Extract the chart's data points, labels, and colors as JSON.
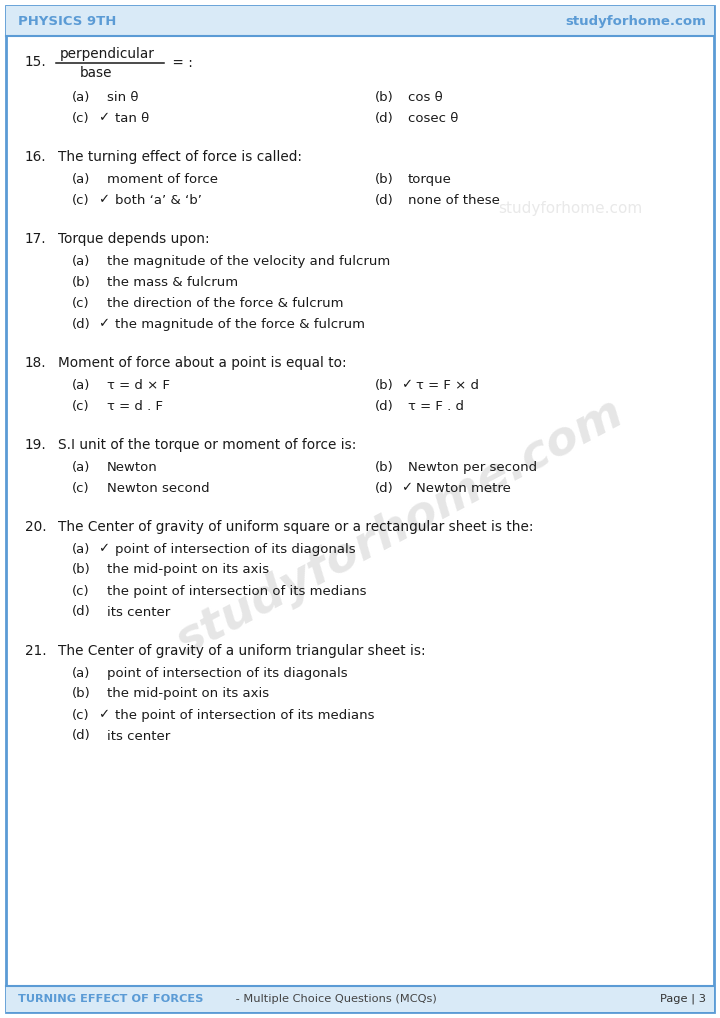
{
  "header_left": "PHYSICS 9TH",
  "header_right": "studyforhome.com",
  "footer_left": "TURNING EFFECT OF FORCES",
  "footer_middle": " - Multiple Choice Questions (MCQs)",
  "footer_right": "Page | 3",
  "header_color": "#5b9bd5",
  "border_color": "#5b9bd5",
  "bg_color": "#ffffff",
  "text_color": "#1a1a1a",
  "watermark_text": "studyforhome.com",
  "questions": [
    {
      "num": "15.",
      "question": null,
      "fraction_num": "perpendicular",
      "fraction_den": "base",
      "fraction_suffix": " = :",
      "options_2col": true,
      "options": [
        {
          "label": "(a)",
          "check": false,
          "text": "sin θ"
        },
        {
          "label": "(b)",
          "check": false,
          "text": "cos θ"
        },
        {
          "label": "(c)",
          "check": true,
          "text": "tan θ"
        },
        {
          "label": "(d)",
          "check": false,
          "text": "cosec θ"
        }
      ]
    },
    {
      "num": "16.",
      "question": "The turning effect of force is called:",
      "fraction_num": null,
      "options_2col": true,
      "options": [
        {
          "label": "(a)",
          "check": false,
          "text": "moment of force"
        },
        {
          "label": "(b)",
          "check": false,
          "text": "torque"
        },
        {
          "label": "(c)",
          "check": true,
          "text": "both ‘a’ & ‘b’"
        },
        {
          "label": "(d)",
          "check": false,
          "text": "none of these"
        }
      ]
    },
    {
      "num": "17.",
      "question": "Torque depends upon:",
      "fraction_num": null,
      "options_2col": false,
      "options": [
        {
          "label": "(a)",
          "check": false,
          "text": "the magnitude of the velocity and fulcrum"
        },
        {
          "label": "(b)",
          "check": false,
          "text": "the mass & fulcrum"
        },
        {
          "label": "(c)",
          "check": false,
          "text": "the direction of the force & fulcrum"
        },
        {
          "label": "(d)",
          "check": true,
          "text": "the magnitude of the force & fulcrum"
        }
      ]
    },
    {
      "num": "18.",
      "question": "Moment of force about a point is equal to:",
      "fraction_num": null,
      "options_2col": true,
      "options": [
        {
          "label": "(a)",
          "check": false,
          "text": "τ = d × F"
        },
        {
          "label": "(b)",
          "check": true,
          "text": "τ = F × d"
        },
        {
          "label": "(c)",
          "check": false,
          "text": "τ = d . F"
        },
        {
          "label": "(d)",
          "check": false,
          "text": "τ = F . d"
        }
      ]
    },
    {
      "num": "19.",
      "question": "S.I unit of the torque or moment of force is:",
      "fraction_num": null,
      "options_2col": true,
      "options": [
        {
          "label": "(a)",
          "check": false,
          "text": "Newton"
        },
        {
          "label": "(b)",
          "check": false,
          "text": "Newton per second"
        },
        {
          "label": "(c)",
          "check": false,
          "text": "Newton second"
        },
        {
          "label": "(d)",
          "check": true,
          "text": "Newton metre"
        }
      ]
    },
    {
      "num": "20.",
      "question": "The Center of gravity of uniform square or a rectangular sheet is the:",
      "fraction_num": null,
      "options_2col": false,
      "options": [
        {
          "label": "(a)",
          "check": true,
          "text": "point of intersection of its diagonals"
        },
        {
          "label": "(b)",
          "check": false,
          "text": "the mid-point on its axis"
        },
        {
          "label": "(c)",
          "check": false,
          "text": "the point of intersection of its medians"
        },
        {
          "label": "(d)",
          "check": false,
          "text": "its center"
        }
      ]
    },
    {
      "num": "21.",
      "question": "The Center of gravity of a uniform triangular sheet is:",
      "fraction_num": null,
      "options_2col": false,
      "options": [
        {
          "label": "(a)",
          "check": false,
          "text": "point of intersection of its diagonals"
        },
        {
          "label": "(b)",
          "check": false,
          "text": "the mid-point on its axis"
        },
        {
          "label": "(c)",
          "check": true,
          "text": "the point of intersection of its medians"
        },
        {
          "label": "(d)",
          "check": false,
          "text": "its center"
        }
      ]
    }
  ]
}
